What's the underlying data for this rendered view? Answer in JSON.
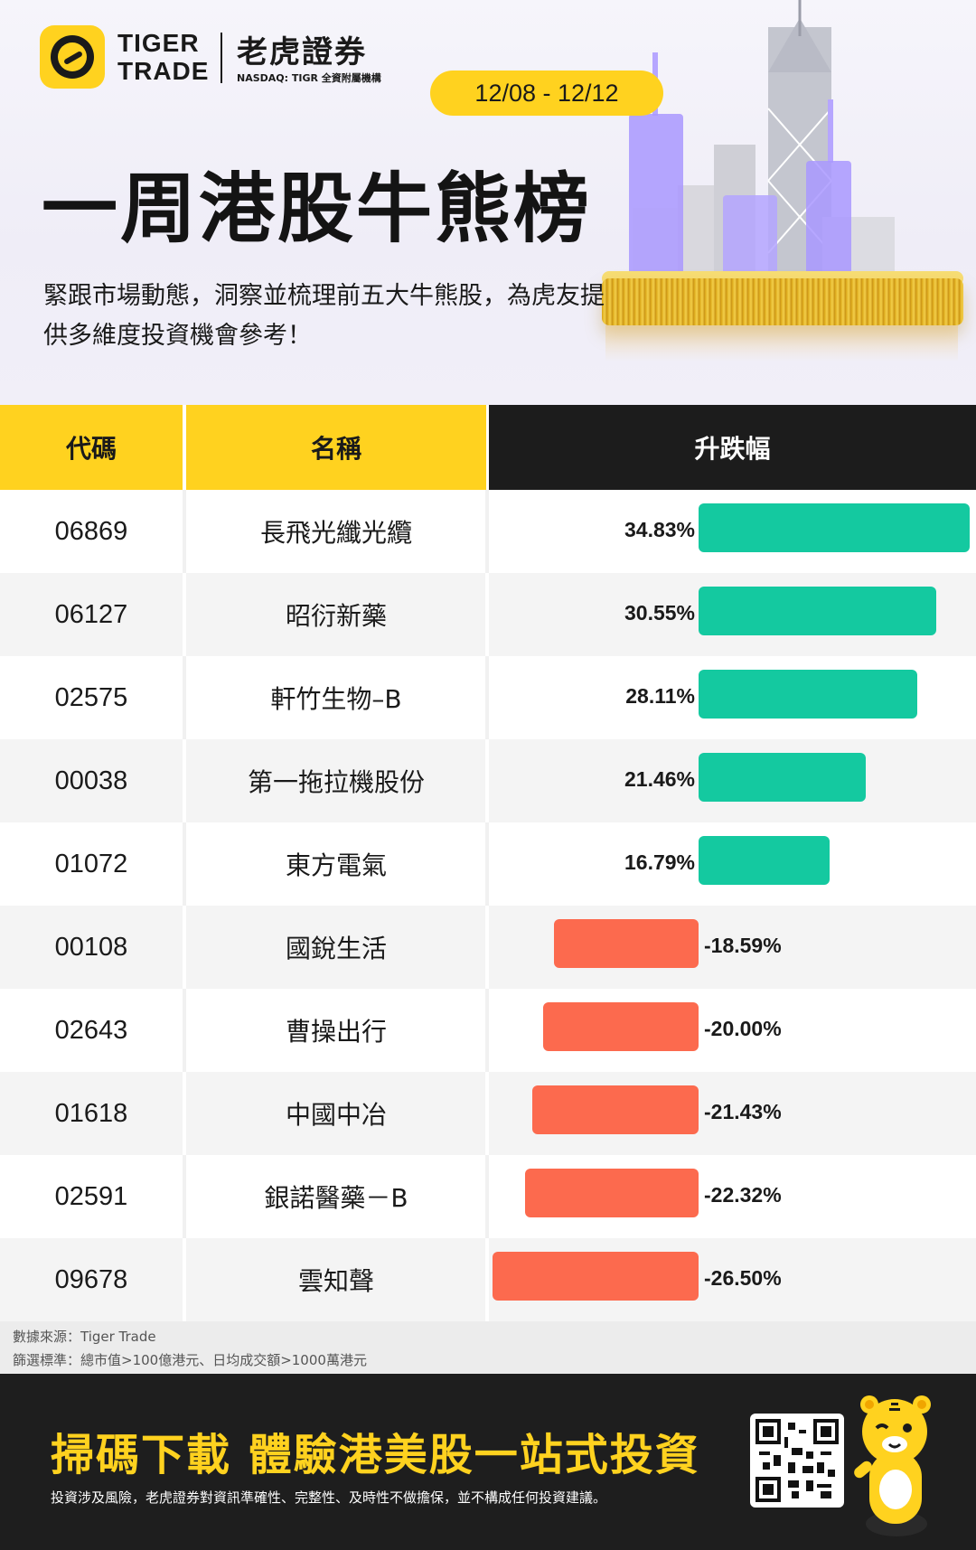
{
  "header": {
    "brand_en_line1": "TIGER",
    "brand_en_line2": "TRADE",
    "brand_zh": "老虎證券",
    "brand_nasdaq": "NASDAQ: TIGR 全資附屬機構",
    "date_range": "12/08 - 12/12",
    "title": "一周港股牛熊榜",
    "subtitle": "緊跟市場動態，洞察並梳理前五大牛熊股，為虎友提供多維度投資機會參考！"
  },
  "table": {
    "col_code": "代碼",
    "col_name": "名稱",
    "col_change": "升跌幅"
  },
  "chart_data": {
    "type": "bar",
    "orientation": "horizontal",
    "value_unit": "%",
    "rows": [
      {
        "code": "06869",
        "name": "長飛光纖光纜",
        "value": 34.83,
        "label": "34.83%"
      },
      {
        "code": "06127",
        "name": "昭衍新藥",
        "value": 30.55,
        "label": "30.55%"
      },
      {
        "code": "02575",
        "name": "軒竹生物–B",
        "value": 28.11,
        "label": "28.11%"
      },
      {
        "code": "00038",
        "name": "第一拖拉機股份",
        "value": 21.46,
        "label": "21.46%"
      },
      {
        "code": "01072",
        "name": "東方電氣",
        "value": 16.79,
        "label": "16.79%"
      },
      {
        "code": "00108",
        "name": "國銳生活",
        "value": -18.59,
        "label": "-18.59%"
      },
      {
        "code": "02643",
        "name": "曹操出行",
        "value": -20.0,
        "label": "-20.00%"
      },
      {
        "code": "01618",
        "name": "中國中冶",
        "value": -21.43,
        "label": "-21.43%"
      },
      {
        "code": "02591",
        "name": "銀諾醫藥－B",
        "value": -22.32,
        "label": "-22.32%"
      },
      {
        "code": "09678",
        "name": "雲知聲",
        "value": -26.5,
        "label": "-26.50%"
      }
    ],
    "colors": {
      "positive": "#14c9a0",
      "negative": "#fc6a4e"
    }
  },
  "footnote": {
    "source": "數據來源：Tiger Trade",
    "criteria": "篩選標準：總市值>100億港元、日均成交額>1000萬港元"
  },
  "footer": {
    "cta": "掃碼下載 體驗港美股一站式投資",
    "disclaimer": "投資涉及風險，老虎證券對資訊準確性、完整性、及時性不做擔保，並不構成任何投資建議。"
  },
  "colors": {
    "brand_yellow": "#ffd21f",
    "dark": "#1c1c1c"
  }
}
